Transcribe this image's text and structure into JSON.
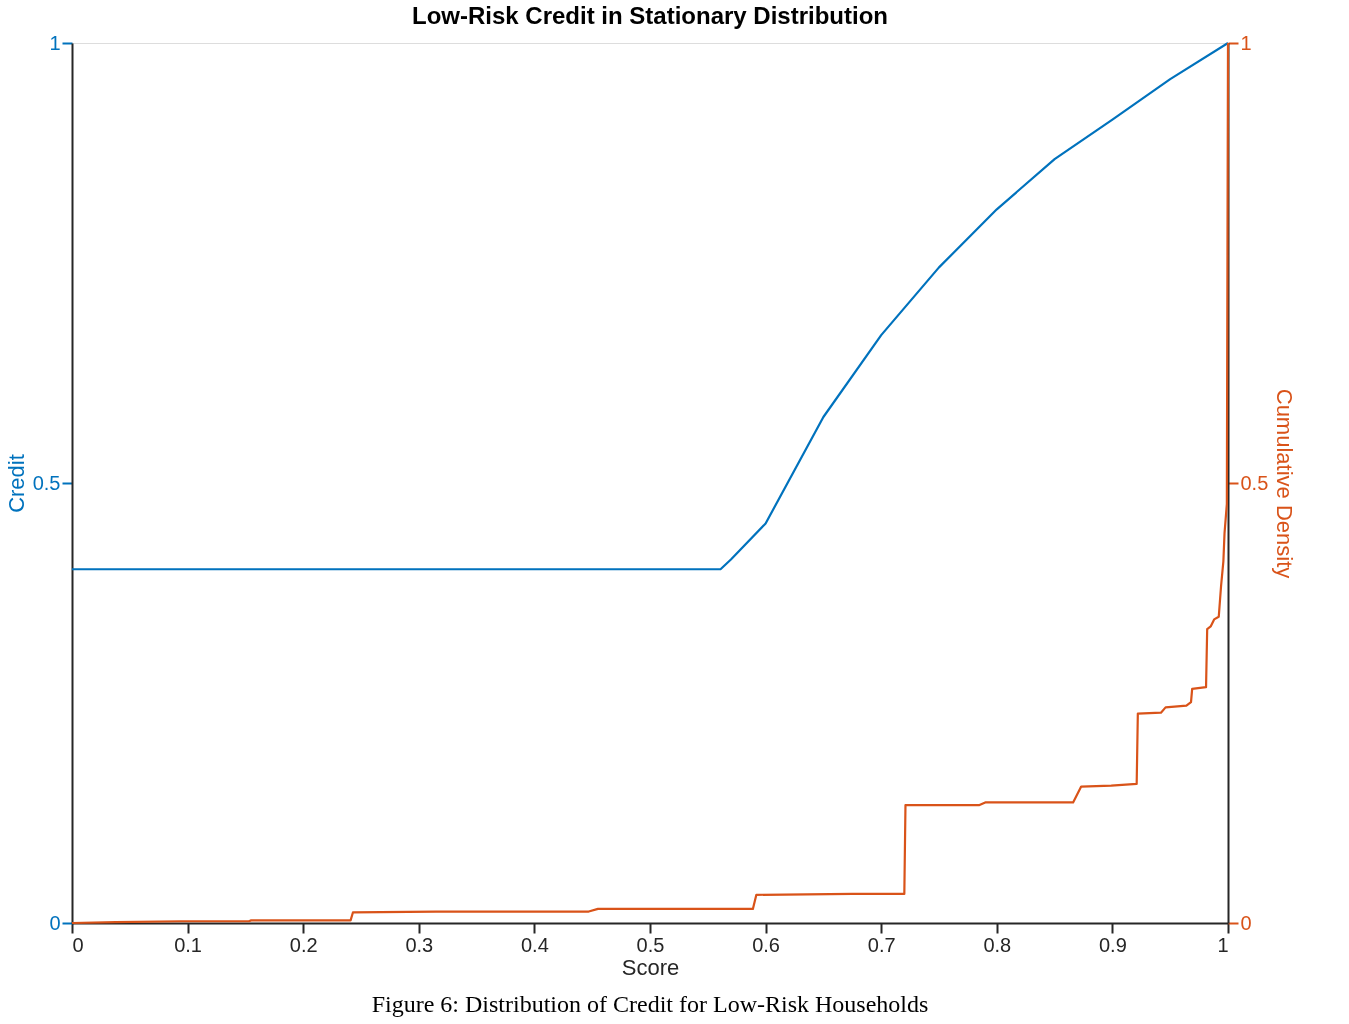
{
  "chart_data": {
    "type": "line",
    "title": "Low-Risk Credit in Stationary Distribution",
    "xlabel": "Score",
    "ylabel": "Credit",
    "y2label": "Cumulative Density",
    "xlim": [
      0,
      1
    ],
    "xticks": [
      0,
      0.1,
      0.2,
      0.3,
      0.4,
      0.5,
      0.6,
      0.7,
      0.8,
      0.9,
      1
    ],
    "ylim": [
      0,
      1
    ],
    "yticks": [
      0,
      0.5,
      1
    ],
    "y2lim": [
      0,
      1
    ],
    "y2ticks": [
      0,
      0.5,
      1
    ],
    "grid": false,
    "legend": false,
    "annotations": [
      "Figure 6: Distribution of Credit for Low-Risk Households"
    ],
    "series": [
      {
        "color": "#0072bd",
        "axis": "y",
        "x": [
          0,
          0.561,
          0.57,
          0.6,
          0.65,
          0.7,
          0.75,
          0.8,
          0.85,
          0.9,
          0.95,
          1
        ],
        "values": [
          0.402,
          0.402,
          0.413,
          0.454,
          0.575,
          0.668,
          0.745,
          0.811,
          0.868,
          0.913,
          0.959,
          1
        ]
      },
      {
        "color": "#d95319",
        "axis": "y2",
        "x": [
          0,
          0.038,
          0.094,
          0.153,
          0.155,
          0.241,
          0.243,
          0.315,
          0.447,
          0.455,
          0.589,
          0.592,
          0.675,
          0.72,
          0.721,
          0.785,
          0.79,
          0.866,
          0.873,
          0.899,
          0.921,
          0.922,
          0.942,
          0.946,
          0.964,
          0.968,
          0.969,
          0.981,
          0.982,
          0.985,
          0.988,
          0.992,
          0.994,
          0.996,
          0.997,
          0.999,
          1
        ],
        "values": [
          0,
          0.001,
          0.002,
          0.002,
          0.003,
          0.003,
          0.012,
          0.013,
          0.013,
          0.016,
          0.016,
          0.032,
          0.033,
          0.033,
          0.134,
          0.134,
          0.137,
          0.137,
          0.155,
          0.156,
          0.158,
          0.238,
          0.239,
          0.245,
          0.247,
          0.251,
          0.266,
          0.268,
          0.334,
          0.337,
          0.345,
          0.348,
          0.383,
          0.411,
          0.443,
          0.476,
          1
        ]
      }
    ]
  }
}
